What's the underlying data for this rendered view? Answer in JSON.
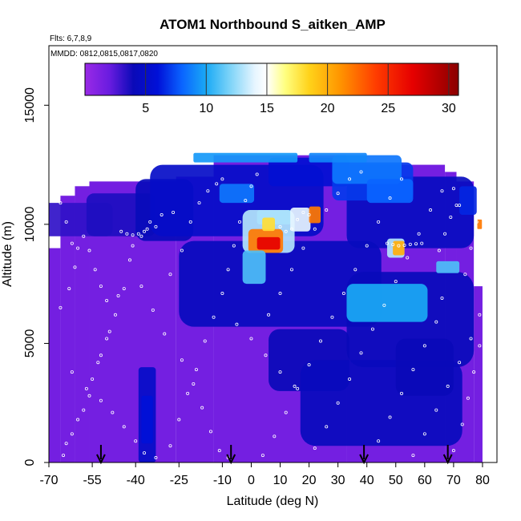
{
  "chart_data": {
    "type": "heatmap",
    "title": "ATOM1 Northbound S_aitken_AMP",
    "subtitle_flights": "Flts: 6,7,8,9",
    "subtitle_dates": "MMDD: 0812,0815,0817,0820",
    "xlabel": "Latitude (deg N)",
    "ylabel": "Altitude (m)",
    "xlim": [
      -70,
      85
    ],
    "ylim": [
      0,
      17500
    ],
    "x_ticks": [
      -70,
      -55,
      -40,
      -25,
      -10,
      0,
      10,
      20,
      30,
      40,
      50,
      60,
      70,
      80
    ],
    "x_tick_labels": [
      "-70",
      "-55",
      "-40",
      "-25",
      "-10",
      "0",
      "10",
      "20",
      "30",
      "40",
      "50",
      "60",
      "70",
      "80"
    ],
    "y_ticks": [
      0,
      5000,
      10000,
      15000
    ],
    "y_tick_labels": [
      "0",
      "5000",
      "10000",
      "15000"
    ],
    "colorbar": {
      "min": 0,
      "max": 30.8,
      "ticks": [
        5,
        10,
        15,
        20,
        25,
        30
      ],
      "tick_labels": [
        "5",
        "10",
        "15",
        "20",
        "25",
        "30"
      ],
      "stops": [
        {
          "v": 0,
          "c": "#9a2ae6"
        },
        {
          "v": 2,
          "c": "#6a1ce0"
        },
        {
          "v": 4,
          "c": "#0a0ab8"
        },
        {
          "v": 6,
          "c": "#0010d8"
        },
        {
          "v": 8,
          "c": "#0a64ff"
        },
        {
          "v": 10,
          "c": "#1aaaf5"
        },
        {
          "v": 12,
          "c": "#7fd4f8"
        },
        {
          "v": 14,
          "c": "#e6f5ff"
        },
        {
          "v": 15,
          "c": "#ffffff"
        },
        {
          "v": 16.5,
          "c": "#ffff80"
        },
        {
          "v": 18.5,
          "c": "#ffd21a"
        },
        {
          "v": 21,
          "c": "#ff9600"
        },
        {
          "v": 24,
          "c": "#ff3c00"
        },
        {
          "v": 27,
          "c": "#e60000"
        },
        {
          "v": 30.8,
          "c": "#8a0000"
        }
      ]
    },
    "profile_arrow_latitudes": [
      -52,
      -7,
      39,
      68
    ],
    "columns": [
      {
        "lat0": -70,
        "lat1": -66,
        "top": 9000
      },
      {
        "lat0": -66,
        "lat1": -61,
        "top": 11200
      },
      {
        "lat0": -61,
        "lat1": -56,
        "top": 11600
      },
      {
        "lat0": -56,
        "lat1": -26,
        "top": 11800
      },
      {
        "lat0": -26,
        "lat1": -13,
        "top": 12000
      },
      {
        "lat0": -13,
        "lat1": 33,
        "top": 12900
      },
      {
        "lat0": 33,
        "lat1": 67,
        "top": 12500
      },
      {
        "lat0": 67,
        "lat1": 71,
        "top": 12200
      },
      {
        "lat0": 71,
        "lat1": 77,
        "top": 11800
      },
      {
        "lat0": 77,
        "lat1": 80,
        "top": 7400
      }
    ],
    "blobs": [
      {
        "lat": -60,
        "alt": 10200,
        "rx": 12,
        "ry": 700,
        "v": 3.2
      },
      {
        "lat": -45,
        "alt": 10400,
        "rx": 12,
        "ry": 900,
        "v": 3.6
      },
      {
        "lat": -30,
        "alt": 10600,
        "rx": 10,
        "ry": 1300,
        "v": 4.2
      },
      {
        "lat": -5,
        "alt": 11000,
        "rx": 30,
        "ry": 1500,
        "v": 5.0
      },
      {
        "lat": 55,
        "alt": 10500,
        "rx": 22,
        "ry": 1500,
        "v": 4.5
      },
      {
        "lat": 10,
        "alt": 7500,
        "rx": 35,
        "ry": 1800,
        "v": 4.4
      },
      {
        "lat": 55,
        "alt": 6000,
        "rx": 22,
        "ry": 2000,
        "v": 4.2
      },
      {
        "lat": 20,
        "alt": 4300,
        "rx": 14,
        "ry": 1300,
        "v": 4.0
      },
      {
        "lat": 45,
        "alt": 2500,
        "rx": 28,
        "ry": 1800,
        "v": 4.3
      },
      {
        "lat": -36,
        "alt": 2000,
        "rx": 3,
        "ry": 2000,
        "v": 5.0
      },
      {
        "lat": -36,
        "alt": 1800,
        "rx": 2,
        "ry": 1000,
        "v": 6.0
      },
      {
        "lat": 60,
        "alt": 4000,
        "rx": 10,
        "ry": 1200,
        "v": 4.0
      },
      {
        "lat": 20,
        "alt": 12200,
        "rx": 14,
        "ry": 600,
        "v": 5.6
      },
      {
        "lat": 42,
        "alt": 11800,
        "rx": 14,
        "ry": 800,
        "v": 7.0
      },
      {
        "lat": 40,
        "alt": 12300,
        "rx": 12,
        "ry": 600,
        "v": 8.5
      },
      {
        "lat": 48,
        "alt": 11400,
        "rx": 8,
        "ry": 500,
        "v": 8.0
      },
      {
        "lat": -2,
        "alt": 12800,
        "rx": 18,
        "ry": 200,
        "v": 9.5
      },
      {
        "lat": 30,
        "alt": 12800,
        "rx": 10,
        "ry": 200,
        "v": 9.0
      },
      {
        "lat": -5,
        "alt": 11300,
        "rx": 6,
        "ry": 400,
        "v": 8.5
      },
      {
        "lat": 8,
        "alt": 10300,
        "rx": 6,
        "ry": 300,
        "v": 11.0
      },
      {
        "lat": 6,
        "alt": 9700,
        "rx": 9,
        "ry": 900,
        "v": 13.0
      },
      {
        "lat": 5,
        "alt": 9300,
        "rx": 6,
        "ry": 500,
        "v": 22.0
      },
      {
        "lat": 6,
        "alt": 9200,
        "rx": 4,
        "ry": 260,
        "v": 27.0
      },
      {
        "lat": 6,
        "alt": 10000,
        "rx": 2.2,
        "ry": 280,
        "v": 18.0
      },
      {
        "lat": 17,
        "alt": 10200,
        "rx": 3.5,
        "ry": 500,
        "v": 14.0
      },
      {
        "lat": 22,
        "alt": 10400,
        "rx": 2,
        "ry": 350,
        "v": 22.0
      },
      {
        "lat": 1,
        "alt": 8200,
        "rx": 4,
        "ry": 700,
        "v": 11.0
      },
      {
        "lat": 47,
        "alt": 6700,
        "rx": 14,
        "ry": 800,
        "v": 10.0
      },
      {
        "lat": 50,
        "alt": 9000,
        "rx": 3,
        "ry": 400,
        "v": 13.0
      },
      {
        "lat": 51,
        "alt": 9000,
        "rx": 2,
        "ry": 300,
        "v": 20.0
      },
      {
        "lat": 68,
        "alt": 8200,
        "rx": 4,
        "ry": 250,
        "v": 11.0
      },
      {
        "lat": 75,
        "alt": 11000,
        "rx": 3,
        "ry": 600,
        "v": 6.5
      },
      {
        "lat": 79,
        "alt": 10000,
        "rx": 0.8,
        "ry": 200,
        "v": 22.0
      }
    ],
    "sample_points": [
      [
        -65,
        300
      ],
      [
        -62,
        1200
      ],
      [
        -58,
        2200
      ],
      [
        -55,
        3500
      ],
      [
        -52,
        4500
      ],
      [
        -49,
        5500
      ],
      [
        -46,
        7000
      ],
      [
        -42,
        8500
      ],
      [
        -38,
        9500
      ],
      [
        -35,
        10100
      ],
      [
        -31,
        10400
      ],
      [
        -27,
        10500
      ],
      [
        -64,
        800
      ],
      [
        -60,
        1800
      ],
      [
        -56,
        2800
      ],
      [
        -53,
        4200
      ],
      [
        -50,
        5200
      ],
      [
        -47,
        6200
      ],
      [
        -44,
        7300
      ],
      [
        -41,
        9100
      ],
      [
        -36,
        9800
      ],
      [
        -33,
        9900
      ],
      [
        -66,
        6500
      ],
      [
        -63,
        7300
      ],
      [
        -61,
        8200
      ],
      [
        -60,
        9000
      ],
      [
        -58,
        9500
      ],
      [
        -56,
        8900
      ],
      [
        -54,
        8100
      ],
      [
        -52,
        7400
      ],
      [
        -50,
        6800
      ],
      [
        -45,
        9700
      ],
      [
        -43,
        9600
      ],
      [
        -41,
        9550
      ],
      [
        -39,
        9600
      ],
      [
        -37,
        9700
      ],
      [
        -62,
        3800
      ],
      [
        -57,
        3100
      ],
      [
        -52,
        2600
      ],
      [
        -48,
        2100
      ],
      [
        -44,
        1500
      ],
      [
        -40,
        900
      ],
      [
        -37,
        400
      ],
      [
        -33,
        200
      ],
      [
        -28,
        700
      ],
      [
        -25,
        1800
      ],
      [
        -22,
        2900
      ],
      [
        -19,
        3900
      ],
      [
        -16,
        5100
      ],
      [
        -13,
        6100
      ],
      [
        -10,
        7100
      ],
      [
        -8,
        8100
      ],
      [
        -6,
        9100
      ],
      [
        -4,
        10100
      ],
      [
        -2,
        11000
      ],
      [
        0,
        11600
      ],
      [
        2,
        12100
      ],
      [
        -28,
        7900
      ],
      [
        -24,
        8900
      ],
      [
        -21,
        10100
      ],
      [
        -18,
        10900
      ],
      [
        -15,
        11400
      ],
      [
        -12,
        11700
      ],
      [
        -10,
        11900
      ],
      [
        -24,
        4300
      ],
      [
        -20,
        3300
      ],
      [
        -17,
        2300
      ],
      [
        -14,
        1300
      ],
      [
        -11,
        500
      ],
      [
        -8,
        200
      ],
      [
        4,
        300
      ],
      [
        8,
        1100
      ],
      [
        12,
        2100
      ],
      [
        16,
        3100
      ],
      [
        20,
        4100
      ],
      [
        24,
        5100
      ],
      [
        28,
        6100
      ],
      [
        32,
        7100
      ],
      [
        36,
        8100
      ],
      [
        40,
        9100
      ],
      [
        44,
        10100
      ],
      [
        48,
        11100
      ],
      [
        52,
        11900
      ],
      [
        6,
        6200
      ],
      [
        10,
        7100
      ],
      [
        14,
        8100
      ],
      [
        18,
        9000
      ],
      [
        22,
        9800
      ],
      [
        26,
        10600
      ],
      [
        30,
        11300
      ],
      [
        34,
        11900
      ],
      [
        38,
        12200
      ],
      [
        22,
        600
      ],
      [
        26,
        1500
      ],
      [
        30,
        2500
      ],
      [
        34,
        3500
      ],
      [
        38,
        4600
      ],
      [
        42,
        5600
      ],
      [
        46,
        6600
      ],
      [
        50,
        7600
      ],
      [
        54,
        8600
      ],
      [
        58,
        9600
      ],
      [
        62,
        10600
      ],
      [
        66,
        11400
      ],
      [
        56,
        300
      ],
      [
        60,
        1200
      ],
      [
        64,
        2200
      ],
      [
        68,
        3200
      ],
      [
        72,
        4200
      ],
      [
        76,
        5200
      ],
      [
        79,
        6200
      ],
      [
        70,
        500
      ],
      [
        73,
        1600
      ],
      [
        75,
        2700
      ],
      [
        77,
        3800
      ],
      [
        79,
        4900
      ],
      [
        74,
        7900
      ],
      [
        76,
        9000
      ],
      [
        78,
        10100
      ],
      [
        72,
        10800
      ],
      [
        70,
        11500
      ],
      [
        44,
        900
      ],
      [
        48,
        1900
      ],
      [
        52,
        2900
      ],
      [
        56,
        3900
      ],
      [
        60,
        4900
      ],
      [
        64,
        5900
      ],
      [
        66,
        6900
      ],
      [
        10,
        9900
      ],
      [
        12,
        9700
      ],
      [
        14,
        9800
      ],
      [
        16,
        10200
      ],
      [
        18,
        10500
      ],
      [
        20,
        10400
      ],
      [
        47,
        9200
      ],
      [
        49,
        9150
      ],
      [
        51,
        9100
      ],
      [
        53,
        9120
      ],
      [
        55,
        9160
      ],
      [
        57,
        9180
      ],
      [
        59,
        9200
      ],
      [
        -5,
        5800
      ],
      [
        0,
        5200
      ],
      [
        5,
        4500
      ],
      [
        10,
        3800
      ],
      [
        15,
        3200
      ],
      [
        -30,
        5400
      ],
      [
        -34,
        6400
      ],
      [
        -38,
        7400
      ],
      [
        -62,
        9200
      ],
      [
        -64,
        10100
      ],
      [
        -66,
        10900
      ],
      [
        65,
        8900
      ],
      [
        67,
        9600
      ],
      [
        69,
        10300
      ],
      [
        71,
        10800
      ]
    ]
  }
}
